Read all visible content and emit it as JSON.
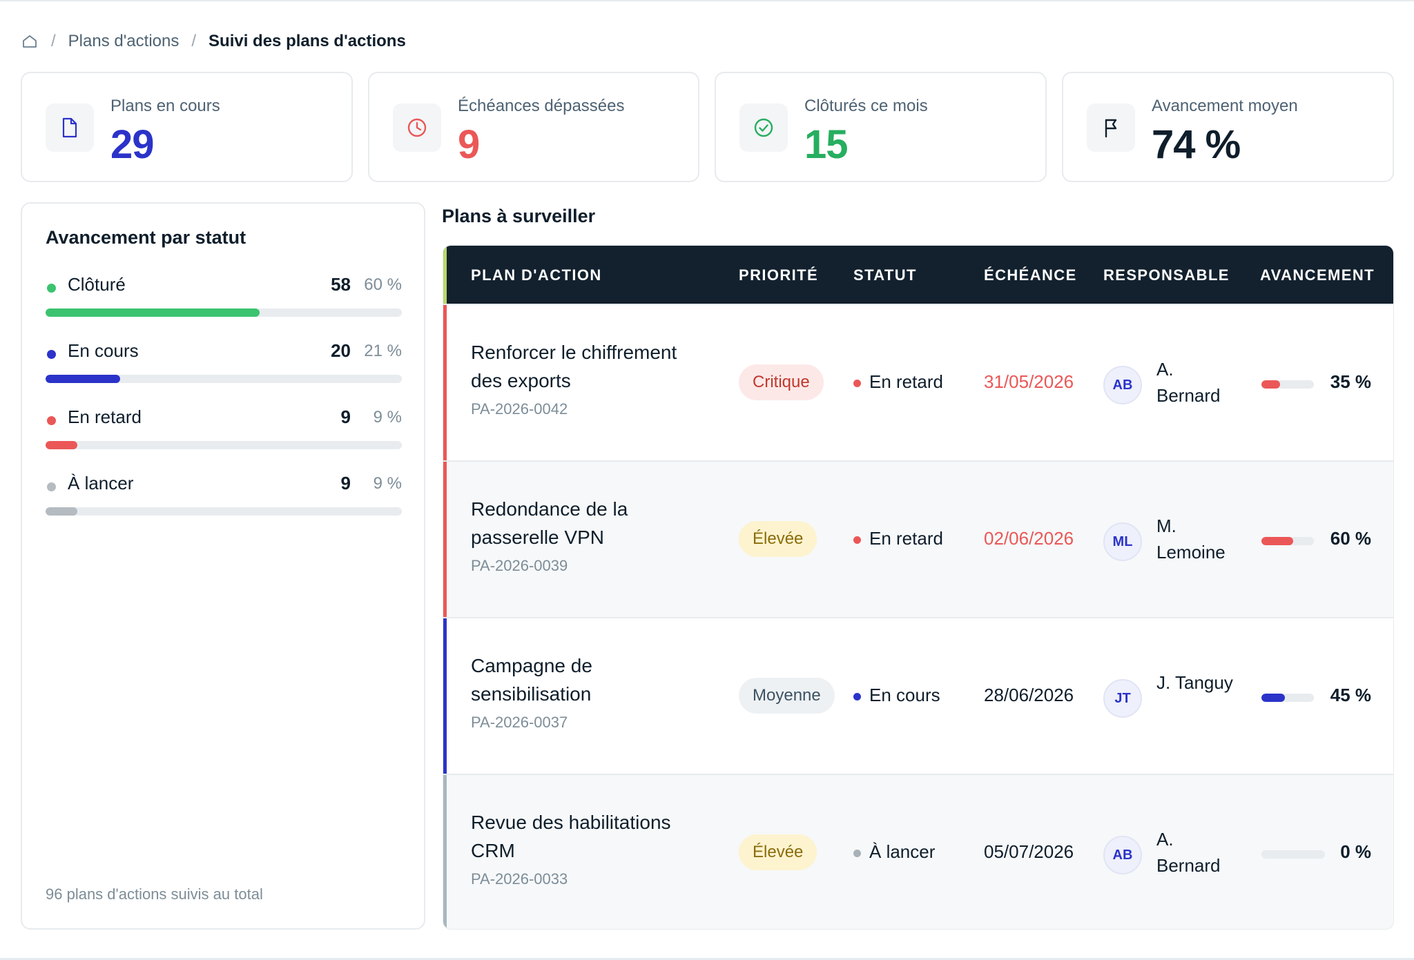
{
  "breadcrumb": {
    "home_icon": "home-icon",
    "items": [
      "Plans d'actions",
      "Suivi des plans d'actions"
    ],
    "separator": "/"
  },
  "kpis": [
    {
      "label": "Plans en cours",
      "value": "29",
      "icon": "document-icon",
      "color": "#2b33c9"
    },
    {
      "label": "Échéances dépassées",
      "value": "9",
      "icon": "clock-icon",
      "color": "#eb5757"
    },
    {
      "label": "Clôturés ce mois",
      "value": "15",
      "icon": "check-circle-icon",
      "color": "#27ae60"
    },
    {
      "label": "Avancement moyen",
      "value": "74 %",
      "icon": "flag-icon",
      "color": "#0f1e2b"
    }
  ],
  "status_panel": {
    "title": "Avancement par statut",
    "items": [
      {
        "label": "Clôturé",
        "count": "58",
        "pct": "60 %",
        "fraction": 0.6,
        "color": "#3cc36f"
      },
      {
        "label": "En cours",
        "count": "20",
        "pct": "21 %",
        "fraction": 0.21,
        "color": "#2b33c9"
      },
      {
        "label": "En retard",
        "count": "9",
        "pct": "9 %",
        "fraction": 0.09,
        "color": "#eb5757"
      },
      {
        "label": "À lancer",
        "count": "9",
        "pct": "9 %",
        "fraction": 0.09,
        "color": "#b4bbc1"
      }
    ],
    "footer": "96 plans d'actions suivis au total"
  },
  "table": {
    "title": "Plans à surveiller",
    "columns": [
      "PLAN D'ACTION",
      "PRIORITÉ",
      "STATUT",
      "ÉCHÉANCE",
      "RESPONSABLE",
      "AVANCEMENT"
    ],
    "rows": [
      {
        "title": "Renforcer le chiffrement des exports",
        "ref": "PA-2026-0042",
        "priority": "Critique",
        "priority_bg": "#fde8e8",
        "priority_color": "#c0392b",
        "status": "En retard",
        "status_color": "#eb5757",
        "due": "31/05/2026",
        "due_color": "#eb5757",
        "owner_initials": "AB",
        "owner_name": "A. Bernard",
        "progress": 0.35,
        "progress_label": "35 %",
        "progress_color": "#eb5757",
        "accent": "#eb5757",
        "row_bg": "#ffffff"
      },
      {
        "title": "Redondance de la passerelle VPN",
        "ref": "PA-2026-0039",
        "priority": "Élevée",
        "priority_bg": "#fdf3cf",
        "priority_color": "#8a6d0b",
        "status": "En retard",
        "status_color": "#eb5757",
        "due": "02/06/2026",
        "due_color": "#eb5757",
        "owner_initials": "ML",
        "owner_name": "M. Lemoine",
        "progress": 0.6,
        "progress_label": "60 %",
        "progress_color": "#eb5757",
        "accent": "#eb5757",
        "row_bg": "#f6f8f9"
      },
      {
        "title": "Campagne de sensibilisation",
        "ref": "PA-2026-0037",
        "priority": "Moyenne",
        "priority_bg": "#eef1f3",
        "priority_color": "#3d5263",
        "status": "En cours",
        "status_color": "#2b33c9",
        "due": "28/06/2026",
        "due_color": "#0f1e2b",
        "owner_initials": "JT",
        "owner_name": "J. Tanguy",
        "progress": 0.45,
        "progress_label": "45 %",
        "progress_color": "#2b33c9",
        "accent": "#2b33c9",
        "row_bg": "#ffffff"
      },
      {
        "title": "Revue des habilitations CRM",
        "ref": "PA-2026-0033",
        "priority": "Élevée",
        "priority_bg": "#fdf3cf",
        "priority_color": "#8a6d0b",
        "status": "À lancer",
        "status_color": "#a9b1b8",
        "due": "05/07/2026",
        "due_color": "#0f1e2b",
        "owner_initials": "AB",
        "owner_name": "A. Bernard",
        "progress": 0.0,
        "progress_label": "0 %",
        "progress_color": "#b4bbc1",
        "accent": "#a9b8bf",
        "row_bg": "#f6f8f9"
      }
    ]
  }
}
